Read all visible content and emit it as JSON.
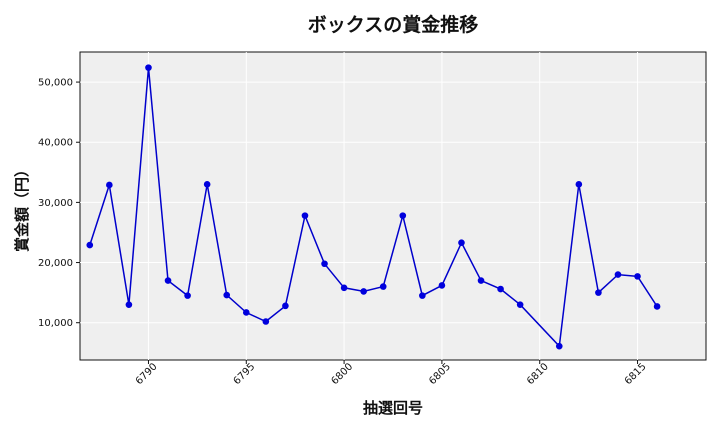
{
  "chart_data": {
    "type": "line",
    "title": "ボックスの賞金推移",
    "xlabel": "抽選回号",
    "ylabel": "賞金額（円）",
    "xlim": [
      6786.5,
      6818.5
    ],
    "ylim": [
      3800,
      55000
    ],
    "x_ticks": [
      6790,
      6795,
      6800,
      6805,
      6810,
      6815
    ],
    "y_ticks": [
      10000,
      20000,
      30000,
      40000,
      50000
    ],
    "y_tick_labels": [
      "10,000",
      "20,000",
      "30,000",
      "40,000",
      "50,000"
    ],
    "grid": true,
    "line_color": "#0000cc",
    "marker_color": "#0000dd",
    "series": [
      {
        "x": [
          6787,
          6788,
          6789,
          6790,
          6791,
          6792,
          6793,
          6794,
          6795,
          6796,
          6797,
          6798,
          6799,
          6800,
          6801,
          6802,
          6803,
          6804,
          6805,
          6806,
          6807,
          6808,
          6809,
          6811,
          6812,
          6813,
          6814,
          6815,
          6816
        ],
        "y": [
          22900,
          32900,
          13000,
          52400,
          17000,
          14500,
          33000,
          14600,
          11700,
          10200,
          12800,
          27800,
          19800,
          15800,
          15200,
          16000,
          27800,
          14500,
          16200,
          23300,
          17000,
          15600,
          13000,
          6100,
          33000,
          15000,
          18000,
          17700,
          12700
        ]
      }
    ]
  }
}
